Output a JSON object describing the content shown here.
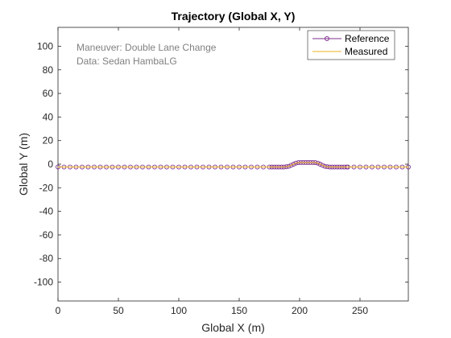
{
  "chart_data": {
    "type": "line",
    "title": "Trajectory (Global X, Y)",
    "xlabel": "Global X (m)",
    "ylabel": "Global Y (m)",
    "xlim": [
      0,
      290
    ],
    "ylim": [
      -116,
      116
    ],
    "xticks": [
      0,
      50,
      100,
      150,
      200,
      250
    ],
    "yticks": [
      -100,
      -80,
      -60,
      -40,
      -20,
      0,
      20,
      40,
      60,
      80,
      100
    ],
    "grid": false,
    "legend": "top-right",
    "annotations": [
      "Maneuver: Double Lane Change",
      "Data: Sedan HambaLG"
    ],
    "series": [
      {
        "name": "Reference",
        "color": "#7E2F8E",
        "marker": "circle",
        "x": [
          0,
          5,
          10,
          15,
          20,
          25,
          30,
          35,
          40,
          45,
          50,
          55,
          60,
          65,
          70,
          75,
          80,
          85,
          90,
          95,
          100,
          105,
          110,
          115,
          120,
          125,
          130,
          135,
          140,
          145,
          150,
          155,
          160,
          165,
          170,
          175,
          177,
          179,
          181,
          183,
          185,
          187,
          189,
          191,
          193,
          195,
          197,
          199,
          201,
          203,
          205,
          207,
          209,
          211,
          213,
          215,
          217,
          219,
          221,
          223,
          225,
          227,
          229,
          231,
          233,
          235,
          237,
          239,
          240,
          245,
          250,
          255,
          260,
          265,
          270,
          275,
          280,
          285,
          290
        ],
        "y": [
          -2.4,
          -2.4,
          -2.4,
          -2.4,
          -2.4,
          -2.4,
          -2.4,
          -2.4,
          -2.4,
          -2.4,
          -2.4,
          -2.4,
          -2.4,
          -2.4,
          -2.4,
          -2.4,
          -2.4,
          -2.4,
          -2.4,
          -2.4,
          -2.4,
          -2.4,
          -2.4,
          -2.4,
          -2.4,
          -2.4,
          -2.4,
          -2.4,
          -2.4,
          -2.4,
          -2.4,
          -2.4,
          -2.4,
          -2.4,
          -2.4,
          -2.4,
          -2.4,
          -2.4,
          -2.4,
          -2.4,
          -2.4,
          -2.4,
          -2.2,
          -1.8,
          -1.0,
          0.0,
          0.9,
          1.3,
          1.4,
          1.4,
          1.4,
          1.4,
          1.4,
          1.4,
          1.3,
          0.9,
          0.0,
          -1.0,
          -1.8,
          -2.2,
          -2.4,
          -2.4,
          -2.4,
          -2.4,
          -2.4,
          -2.4,
          -2.4,
          -2.4,
          -2.4,
          -2.4,
          -2.4,
          -2.4,
          -2.4,
          -2.4,
          -2.4,
          -2.4,
          -2.4,
          -2.4,
          -2.4
        ]
      },
      {
        "name": "Measured",
        "color": "#EDB120",
        "marker": "none",
        "x": [
          0,
          50,
          100,
          150,
          175,
          185,
          189,
          191,
          193,
          195,
          197,
          199,
          201,
          211,
          213,
          215,
          217,
          219,
          221,
          223,
          225,
          240,
          290
        ],
        "y": [
          -2.4,
          -2.4,
          -2.4,
          -2.4,
          -2.4,
          -2.4,
          -2.2,
          -1.8,
          -1.0,
          0.0,
          0.9,
          1.3,
          1.4,
          1.4,
          1.3,
          0.9,
          0.0,
          -1.0,
          -1.8,
          -2.2,
          -2.4,
          -2.4,
          -2.4
        ]
      }
    ]
  }
}
